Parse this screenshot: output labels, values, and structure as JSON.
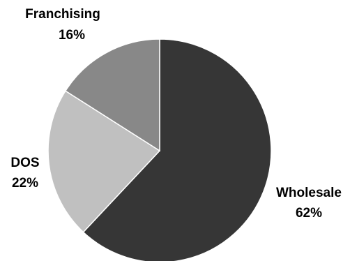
{
  "chart_data": {
    "type": "pie",
    "title": "",
    "slices": [
      {
        "label": "Wholesale",
        "value": 62,
        "value_label": "62%",
        "color": "#363636"
      },
      {
        "label": "DOS",
        "value": 22,
        "value_label": "22%",
        "color": "#c0c0c0"
      },
      {
        "label": "Franchising",
        "value": 16,
        "value_label": "16%",
        "color": "#888888"
      }
    ],
    "start": "12 o'clock",
    "direction": "clockwise",
    "legend": "none"
  }
}
